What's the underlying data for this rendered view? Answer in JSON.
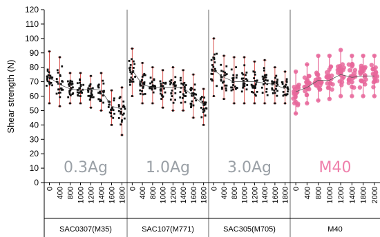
{
  "chart_data": {
    "type": "scatter",
    "ylabel": "Shear strength (N)",
    "ylim": [
      0,
      120
    ],
    "yticks": [
      0,
      10,
      20,
      30,
      40,
      50,
      60,
      70,
      80,
      90,
      100,
      110,
      120
    ],
    "groups": [
      {
        "name": "SAC0307(M35)",
        "panel_label": "0.3Ag",
        "x": [
          "0",
          "400",
          "800",
          "1000",
          "1200",
          "1400",
          "1600",
          "1800"
        ],
        "y_mean": [
          73,
          68,
          65,
          64,
          65,
          64,
          53,
          51
        ],
        "y_min": [
          55,
          53,
          55,
          55,
          52,
          50,
          40,
          33
        ],
        "y_max": [
          91,
          87,
          76,
          76,
          74,
          76,
          64,
          66
        ],
        "marker_color": "#111111",
        "label_color": "#9aa0a6"
      },
      {
        "name": "SAC107(M771)",
        "panel_label": "1.0Ag",
        "x": [
          "0",
          "400",
          "800",
          "1000",
          "1200",
          "1400",
          "1600",
          "1800"
        ],
        "y_mean": [
          78,
          68,
          66,
          66,
          66,
          66,
          60,
          54
        ],
        "y_min": [
          60,
          55,
          55,
          52,
          50,
          50,
          45,
          40
        ],
        "y_max": [
          93,
          83,
          80,
          78,
          80,
          78,
          75,
          65
        ],
        "marker_color": "#111111",
        "label_color": "#9aa0a6"
      },
      {
        "name": "SAC305(M705)",
        "panel_label": "3.0Ag",
        "x": [
          "0",
          "400",
          "800",
          "1000",
          "1200",
          "1400",
          "1600",
          "1800"
        ],
        "y_mean": [
          78,
          73,
          70,
          70,
          70,
          69,
          68,
          65
        ],
        "y_min": [
          60,
          58,
          55,
          55,
          55,
          55,
          55,
          55
        ],
        "y_max": [
          100,
          88,
          87,
          87,
          84,
          85,
          80,
          77
        ],
        "marker_color": "#111111",
        "label_color": "#9aa0a6"
      },
      {
        "name": "M40",
        "panel_label": "M40",
        "x": [
          "0",
          "400",
          "800",
          "1000",
          "1200",
          "1400",
          "1800",
          "2000"
        ],
        "y_mean": [
          63,
          66,
          71,
          71,
          75,
          73,
          74,
          74
        ],
        "y_min": [
          48,
          55,
          57,
          58,
          60,
          60,
          60,
          60
        ],
        "y_max": [
          77,
          82,
          88,
          88,
          92,
          88,
          88,
          88
        ],
        "marker_color": "#e8679b",
        "label_color": "#ef7fab"
      }
    ],
    "grid": false,
    "legend": "none"
  }
}
